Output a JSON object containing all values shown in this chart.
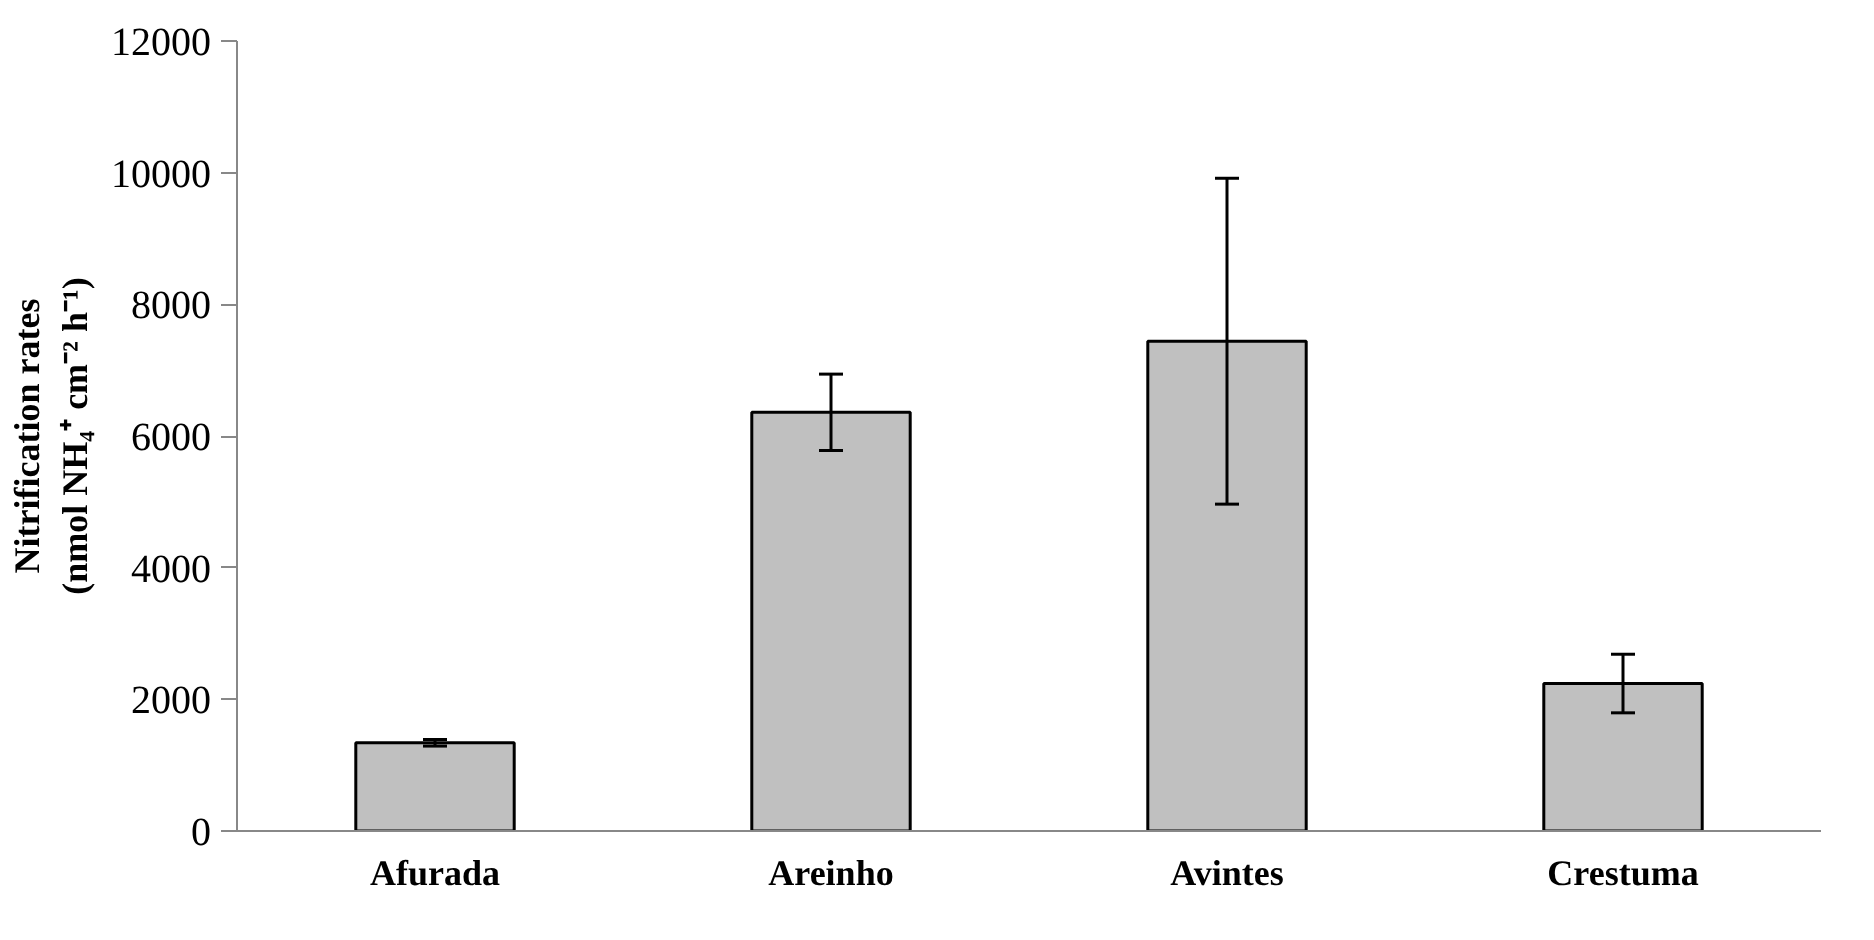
{
  "chart_data": {
    "type": "bar",
    "ylabel": "Nitrification rates\n(nmol NH₄⁺ cm⁻² h⁻¹)",
    "categories": [
      "Afurada",
      "Areinho",
      "Avintes",
      "Crestuma"
    ],
    "values": [
      1340,
      6360,
      7440,
      2240
    ],
    "errors": [
      50,
      580,
      2475,
      445
    ],
    "color": "#c0c0c0",
    "ylim": [
      0,
      12000
    ],
    "yticks": [
      0,
      2000,
      4000,
      6000,
      8000,
      10000,
      12000
    ],
    "grid": false
  }
}
